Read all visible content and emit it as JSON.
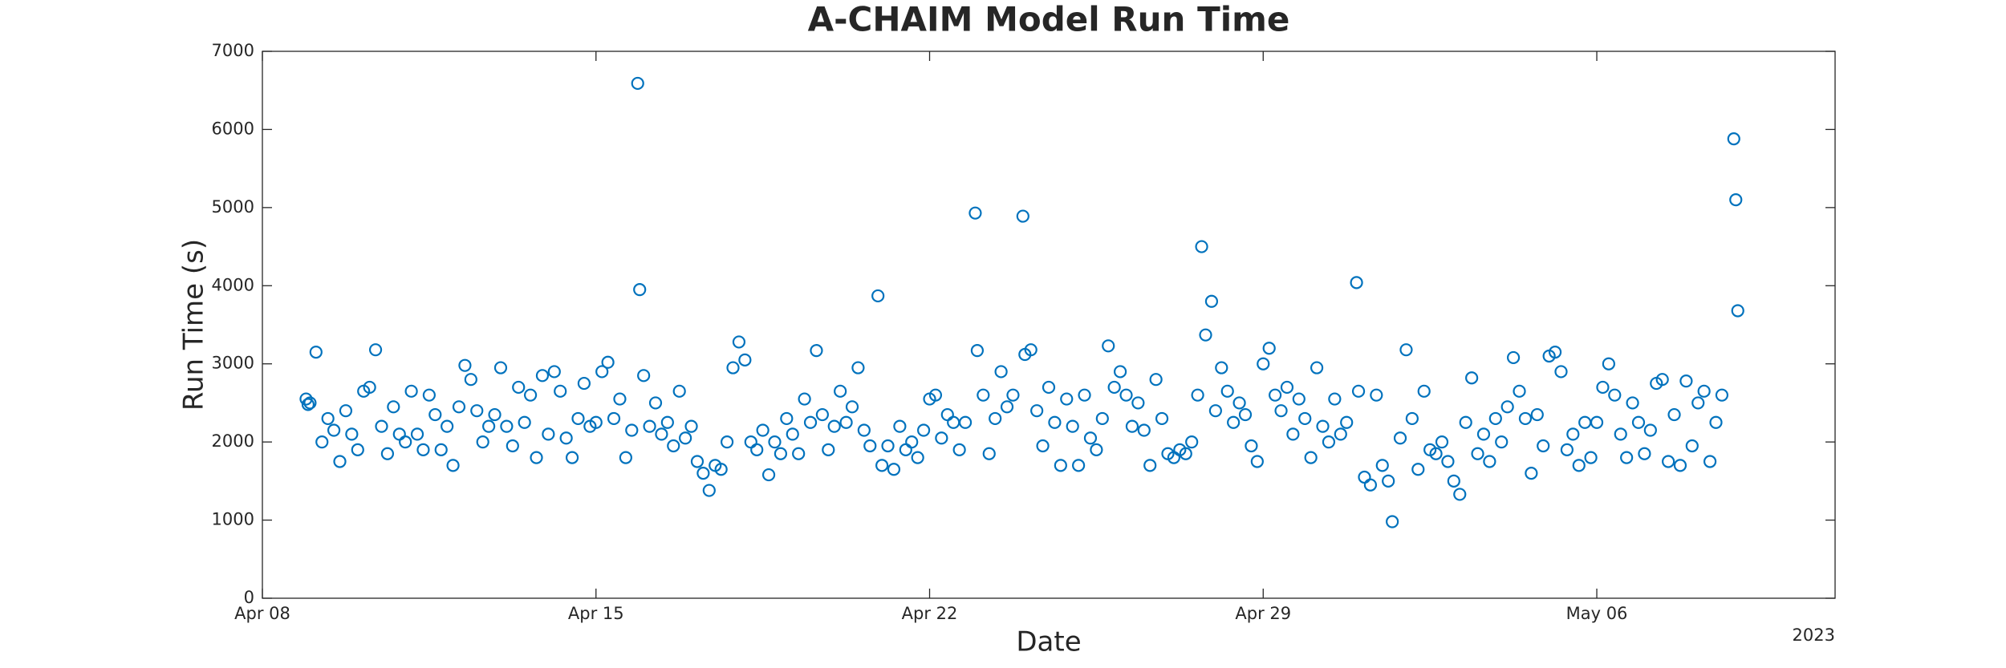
{
  "chart_data": {
    "type": "scatter",
    "title": "A-CHAIM Model Run Time",
    "x_label": "Date",
    "y_label": "Run Time (s)",
    "x_year_label": "2023",
    "color": "#0072bd",
    "xlim": [
      "2023-04-08",
      "2023-05-11"
    ],
    "xticks": [
      {
        "value": "2023-04-08",
        "label": "Apr 08"
      },
      {
        "value": "2023-04-15",
        "label": "Apr 15"
      },
      {
        "value": "2023-04-22",
        "label": "Apr 22"
      },
      {
        "value": "2023-04-29",
        "label": "Apr 29"
      },
      {
        "value": "2023-05-06",
        "label": "May 06"
      }
    ],
    "ylim": [
      0,
      7000
    ],
    "yticks": [
      0,
      1000,
      2000,
      3000,
      4000,
      5000,
      6000,
      7000
    ],
    "x": [
      "2023-04-08 22:00",
      "2023-04-08 23:00",
      "2023-04-09 00:00",
      "2023-04-09 03:00",
      "2023-04-09 06:00",
      "2023-04-09 09:00",
      "2023-04-09 12:00",
      "2023-04-09 15:00",
      "2023-04-09 18:00",
      "2023-04-09 21:00",
      "2023-04-10 00:00",
      "2023-04-10 03:00",
      "2023-04-10 06:00",
      "2023-04-10 09:00",
      "2023-04-10 12:00",
      "2023-04-10 15:00",
      "2023-04-10 18:00",
      "2023-04-10 21:00",
      "2023-04-11 00:00",
      "2023-04-11 03:00",
      "2023-04-11 06:00",
      "2023-04-11 09:00",
      "2023-04-11 12:00",
      "2023-04-11 15:00",
      "2023-04-11 18:00",
      "2023-04-11 21:00",
      "2023-04-12 00:00",
      "2023-04-12 03:00",
      "2023-04-12 06:00",
      "2023-04-12 09:00",
      "2023-04-12 12:00",
      "2023-04-12 15:00",
      "2023-04-12 18:00",
      "2023-04-12 21:00",
      "2023-04-13 00:00",
      "2023-04-13 03:00",
      "2023-04-13 06:00",
      "2023-04-13 09:00",
      "2023-04-13 12:00",
      "2023-04-13 15:00",
      "2023-04-13 18:00",
      "2023-04-13 21:00",
      "2023-04-14 00:00",
      "2023-04-14 03:00",
      "2023-04-14 06:00",
      "2023-04-14 09:00",
      "2023-04-14 12:00",
      "2023-04-14 15:00",
      "2023-04-14 18:00",
      "2023-04-14 21:00",
      "2023-04-15 00:00",
      "2023-04-15 03:00",
      "2023-04-15 06:00",
      "2023-04-15 09:00",
      "2023-04-15 12:00",
      "2023-04-15 15:00",
      "2023-04-15 18:00",
      "2023-04-15 21:00",
      "2023-04-15 22:00",
      "2023-04-16 00:00",
      "2023-04-16 03:00",
      "2023-04-16 06:00",
      "2023-04-16 09:00",
      "2023-04-16 12:00",
      "2023-04-16 15:00",
      "2023-04-16 18:00",
      "2023-04-16 21:00",
      "2023-04-17 00:00",
      "2023-04-17 03:00",
      "2023-04-17 06:00",
      "2023-04-17 09:00",
      "2023-04-17 12:00",
      "2023-04-17 15:00",
      "2023-04-17 18:00",
      "2023-04-17 21:00",
      "2023-04-18 00:00",
      "2023-04-18 03:00",
      "2023-04-18 06:00",
      "2023-04-18 09:00",
      "2023-04-18 12:00",
      "2023-04-18 15:00",
      "2023-04-18 18:00",
      "2023-04-18 21:00",
      "2023-04-19 00:00",
      "2023-04-19 03:00",
      "2023-04-19 06:00",
      "2023-04-19 09:00",
      "2023-04-19 12:00",
      "2023-04-19 15:00",
      "2023-04-19 18:00",
      "2023-04-19 21:00",
      "2023-04-20 00:00",
      "2023-04-20 03:00",
      "2023-04-20 06:00",
      "2023-04-20 09:00",
      "2023-04-20 12:00",
      "2023-04-20 15:00",
      "2023-04-20 18:00",
      "2023-04-20 22:00",
      "2023-04-21 00:00",
      "2023-04-21 03:00",
      "2023-04-21 06:00",
      "2023-04-21 09:00",
      "2023-04-21 12:00",
      "2023-04-21 15:00",
      "2023-04-21 18:00",
      "2023-04-21 21:00",
      "2023-04-22 00:00",
      "2023-04-22 03:00",
      "2023-04-22 06:00",
      "2023-04-22 09:00",
      "2023-04-22 12:00",
      "2023-04-22 15:00",
      "2023-04-22 18:00",
      "2023-04-22 23:00",
      "2023-04-23 00:00",
      "2023-04-23 03:00",
      "2023-04-23 06:00",
      "2023-04-23 09:00",
      "2023-04-23 12:00",
      "2023-04-23 15:00",
      "2023-04-23 18:00",
      "2023-04-23 23:00",
      "2023-04-24 00:00",
      "2023-04-24 03:00",
      "2023-04-24 06:00",
      "2023-04-24 09:00",
      "2023-04-24 12:00",
      "2023-04-24 15:00",
      "2023-04-24 18:00",
      "2023-04-24 21:00",
      "2023-04-25 00:00",
      "2023-04-25 03:00",
      "2023-04-25 06:00",
      "2023-04-25 09:00",
      "2023-04-25 12:00",
      "2023-04-25 15:00",
      "2023-04-25 18:00",
      "2023-04-25 21:00",
      "2023-04-26 00:00",
      "2023-04-26 03:00",
      "2023-04-26 06:00",
      "2023-04-26 09:00",
      "2023-04-26 12:00",
      "2023-04-26 15:00",
      "2023-04-26 18:00",
      "2023-04-26 21:00",
      "2023-04-27 00:00",
      "2023-04-27 03:00",
      "2023-04-27 06:00",
      "2023-04-27 09:00",
      "2023-04-27 12:00",
      "2023-04-27 15:00",
      "2023-04-27 17:00",
      "2023-04-27 19:00",
      "2023-04-27 22:00",
      "2023-04-28 00:00",
      "2023-04-28 03:00",
      "2023-04-28 06:00",
      "2023-04-28 09:00",
      "2023-04-28 12:00",
      "2023-04-28 15:00",
      "2023-04-28 18:00",
      "2023-04-28 21:00",
      "2023-04-29 00:00",
      "2023-04-29 03:00",
      "2023-04-29 06:00",
      "2023-04-29 09:00",
      "2023-04-29 12:00",
      "2023-04-29 15:00",
      "2023-04-29 18:00",
      "2023-04-29 21:00",
      "2023-04-30 00:00",
      "2023-04-30 03:00",
      "2023-04-30 06:00",
      "2023-04-30 09:00",
      "2023-04-30 12:00",
      "2023-04-30 15:00",
      "2023-04-30 18:00",
      "2023-04-30 23:00",
      "2023-05-01 00:00",
      "2023-05-01 03:00",
      "2023-05-01 06:00",
      "2023-05-01 09:00",
      "2023-05-01 12:00",
      "2023-05-01 15:00",
      "2023-05-01 17:00",
      "2023-05-01 21:00",
      "2023-05-02 00:00",
      "2023-05-02 03:00",
      "2023-05-02 06:00",
      "2023-05-02 09:00",
      "2023-05-02 12:00",
      "2023-05-02 15:00",
      "2023-05-02 18:00",
      "2023-05-02 21:00",
      "2023-05-03 00:00",
      "2023-05-03 03:00",
      "2023-05-03 06:00",
      "2023-05-03 09:00",
      "2023-05-03 12:00",
      "2023-05-03 15:00",
      "2023-05-03 18:00",
      "2023-05-03 21:00",
      "2023-05-04 00:00",
      "2023-05-04 03:00",
      "2023-05-04 06:00",
      "2023-05-04 09:00",
      "2023-05-04 12:00",
      "2023-05-04 15:00",
      "2023-05-04 18:00",
      "2023-05-04 21:00",
      "2023-05-05 00:00",
      "2023-05-05 03:00",
      "2023-05-05 06:00",
      "2023-05-05 09:00",
      "2023-05-05 12:00",
      "2023-05-05 15:00",
      "2023-05-05 18:00",
      "2023-05-05 21:00",
      "2023-05-06 00:00",
      "2023-05-06 03:00",
      "2023-05-06 06:00",
      "2023-05-06 09:00",
      "2023-05-06 12:00",
      "2023-05-06 15:00",
      "2023-05-06 18:00",
      "2023-05-06 21:00",
      "2023-05-07 00:00",
      "2023-05-07 03:00",
      "2023-05-07 06:00",
      "2023-05-07 09:00",
      "2023-05-07 12:00",
      "2023-05-07 15:00",
      "2023-05-07 18:00",
      "2023-05-07 21:00",
      "2023-05-08 00:00",
      "2023-05-08 03:00",
      "2023-05-08 06:00",
      "2023-05-08 09:00",
      "2023-05-08 12:00",
      "2023-05-08 15:00",
      "2023-05-08 21:00",
      "2023-05-08 22:00",
      "2023-05-08 23:00"
    ],
    "values": [
      2550,
      2480,
      2500,
      3150,
      2000,
      2300,
      2150,
      1750,
      2400,
      2100,
      1900,
      2650,
      2700,
      3180,
      2200,
      1850,
      2450,
      2100,
      2000,
      2650,
      2100,
      1900,
      2600,
      2350,
      1900,
      2200,
      1700,
      2450,
      2980,
      2800,
      2400,
      2000,
      2200,
      2350,
      2950,
      2200,
      1950,
      2700,
      2250,
      2600,
      1800,
      2850,
      2100,
      2900,
      2650,
      2050,
      1800,
      2300,
      2750,
      2200,
      2250,
      2900,
      3020,
      2300,
      2550,
      1800,
      2150,
      6590,
      3950,
      2850,
      2200,
      2500,
      2100,
      2250,
      1950,
      2650,
      2050,
      2200,
      1750,
      1600,
      1380,
      1700,
      1650,
      2000,
      2950,
      3280,
      3050,
      2000,
      1900,
      2150,
      1580,
      2000,
      1850,
      2300,
      2100,
      1850,
      2550,
      2250,
      3170,
      2350,
      1900,
      2200,
      2650,
      2250,
      2450,
      2950,
      2150,
      1950,
      3870,
      1700,
      1950,
      1650,
      2200,
      1900,
      2000,
      1800,
      2150,
      2550,
      2600,
      2050,
      2350,
      2250,
      1900,
      2250,
      4930,
      3170,
      2600,
      1850,
      2300,
      2900,
      2450,
      2600,
      4890,
      3120,
      3180,
      2400,
      1950,
      2700,
      2250,
      1700,
      2550,
      2200,
      1700,
      2600,
      2050,
      1900,
      2300,
      3230,
      2700,
      2900,
      2600,
      2200,
      2500,
      2150,
      1700,
      2800,
      2300,
      1850,
      1800,
      1900,
      1850,
      2000,
      2600,
      4500,
      3370,
      3800,
      2400,
      2950,
      2650,
      2250,
      2500,
      2350,
      1950,
      1750,
      3000,
      3200,
      2600,
      2400,
      2700,
      2100,
      2550,
      2300,
      1800,
      2950,
      2200,
      2000,
      2550,
      2100,
      2250,
      4040,
      2650,
      1550,
      1450,
      2600,
      1700,
      1500,
      980,
      2050,
      3180,
      2300,
      1650,
      2650,
      1900,
      1850,
      2000,
      1750,
      1500,
      1330,
      2250,
      2820,
      1850,
      2100,
      1750,
      2300,
      2000,
      2450,
      3080,
      2650,
      2300,
      1600,
      2350,
      1950,
      3100,
      3150,
      2900,
      1900,
      2100,
      1700,
      2250,
      1800,
      2250,
      2700,
      3000,
      2600,
      2100,
      1800,
      2500,
      2250,
      1850,
      2150,
      2750,
      2800,
      1750,
      2350,
      1700,
      2780,
      1950,
      2500,
      2650,
      1750,
      2250,
      2600,
      5880,
      5100,
      3680
    ]
  }
}
